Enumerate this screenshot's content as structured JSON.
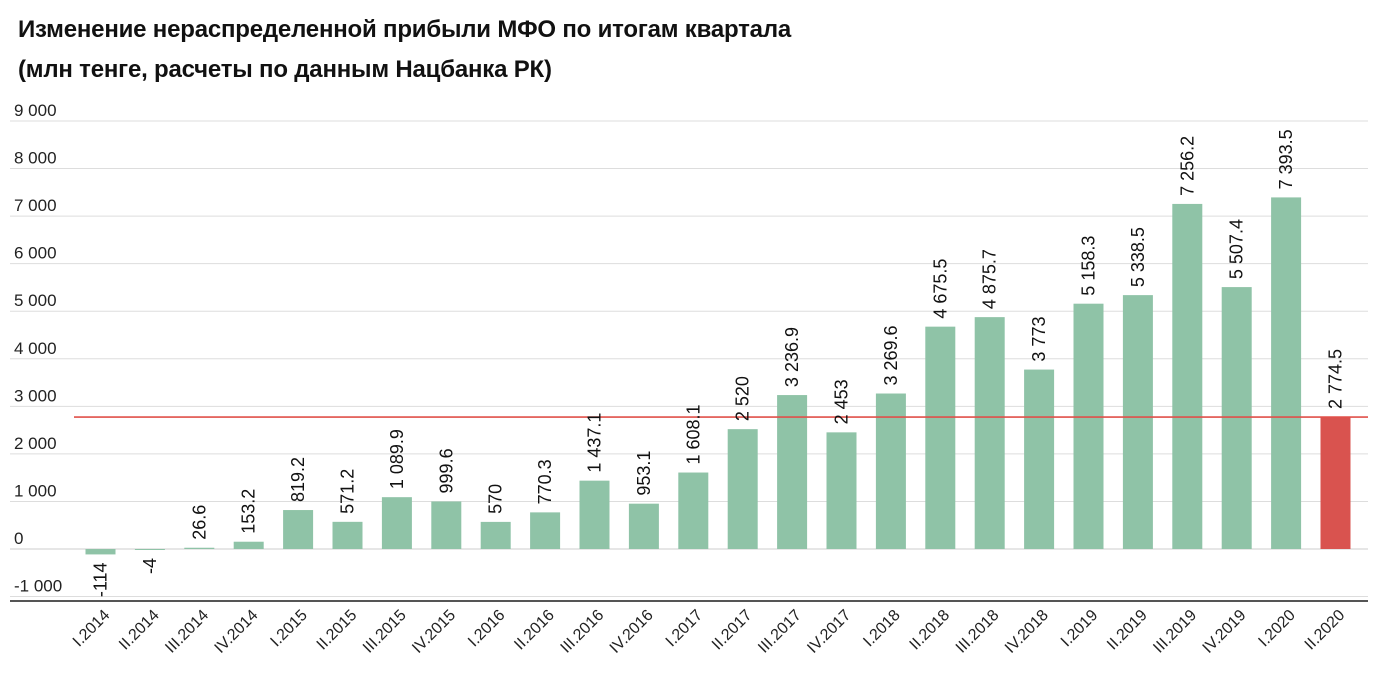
{
  "chart_data": {
    "type": "bar",
    "title": "Изменение нераспределенной прибыли МФО по итогам квартала",
    "subtitle": "(млн тенге, расчеты по данным Нацбанка РК)",
    "xlabel": "",
    "ylabel": "",
    "ylim": [
      -1000,
      9000
    ],
    "yticks": [
      9000,
      8000,
      7000,
      6000,
      5000,
      4000,
      3000,
      2000,
      1000,
      0,
      -1000
    ],
    "ytick_labels": [
      "9 000",
      "8 000",
      "7 000",
      "6 000",
      "5 000",
      "4 000",
      "3 000",
      "2 000",
      "1 000",
      "0",
      "-1 000"
    ],
    "categories": [
      "I.2014",
      "II.2014",
      "III.2014",
      "IV.2014",
      "I.2015",
      "II.2015",
      "III.2015",
      "IV.2015",
      "I.2016",
      "II.2016",
      "III.2016",
      "IV.2016",
      "I.2017",
      "II.2017",
      "III.2017",
      "IV.2017",
      "I.2018",
      "II.2018",
      "III.2018",
      "IV.2018",
      "I.2019",
      "II.2019",
      "III.2019",
      "IV.2019",
      "I.2020",
      "II.2020"
    ],
    "values": [
      -114,
      -4,
      26.6,
      153.2,
      819.2,
      571.2,
      1089.9,
      999.6,
      570,
      770.3,
      1437.1,
      953.1,
      1608.1,
      2520,
      3236.9,
      2453,
      3269.6,
      4675.5,
      4875.7,
      3773,
      5158.3,
      5338.5,
      7256.2,
      5507.4,
      7393.5,
      2774.5
    ],
    "data_labels": [
      "-114",
      "-4",
      "26.6",
      "153.2",
      "819.2",
      "571.2",
      "1 089.9",
      "999.6",
      "570",
      "770.3",
      "1 437.1",
      "953.1",
      "1 608.1",
      "2 520",
      "3 236.9",
      "2 453",
      "3 269.6",
      "4 675.5",
      "4 875.7",
      "3 773",
      "5 158.3",
      "5 338.5",
      "7 256.2",
      "5 507.4",
      "7 393.5",
      "2 774.5"
    ],
    "highlight_index": 25,
    "reference_line": 2774.5,
    "grid": true,
    "colors": {
      "bar": "#8fc3a7",
      "highlight_bar": "#d9534f",
      "reference_line": "#e0504a",
      "grid": "#dddddd",
      "axis": "#555555"
    }
  }
}
